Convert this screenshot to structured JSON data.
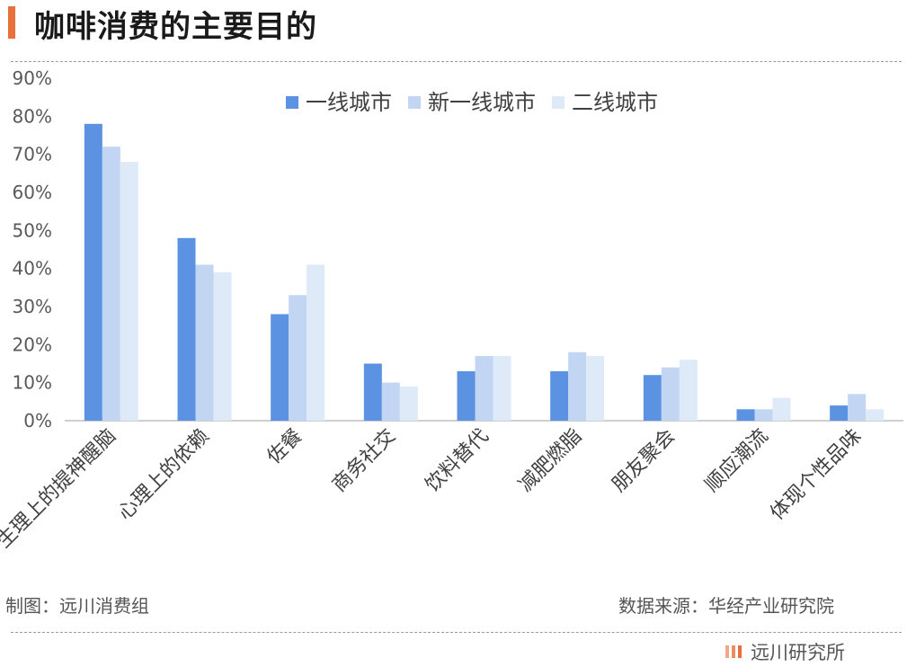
{
  "header": {
    "title": "咖啡消费的主要目的"
  },
  "footer": {
    "maker": "制图：远川消费组",
    "source": "数据来源：华经产业研究院",
    "brand": "远川研究所"
  },
  "colors": {
    "accent": "#e8703a"
  },
  "chart_data": {
    "type": "bar",
    "categories": [
      "生理上的提神醒脑",
      "心理上的依赖",
      "佐餐",
      "商务社交",
      "饮料替代",
      "减肥燃脂",
      "朋友聚会",
      "顺应潮流",
      "体现个性品味"
    ],
    "series": [
      {
        "name": "一线城市",
        "color": "#5b93e2",
        "values": [
          78,
          48,
          28,
          15,
          13,
          13,
          12,
          3,
          4
        ]
      },
      {
        "name": "新一线城市",
        "color": "#c2d6f4",
        "values": [
          72,
          41,
          33,
          10,
          17,
          18,
          14,
          3,
          7
        ]
      },
      {
        "name": "二线城市",
        "color": "#deeaf8",
        "values": [
          68,
          39,
          41,
          9,
          17,
          17,
          16,
          6,
          3
        ]
      }
    ],
    "y_ticks": [
      "0%",
      "10%",
      "20%",
      "30%",
      "40%",
      "50%",
      "60%",
      "70%",
      "80%",
      "90%"
    ],
    "ylim": [
      0,
      90
    ],
    "legend_position": "top-center",
    "grid": false
  }
}
